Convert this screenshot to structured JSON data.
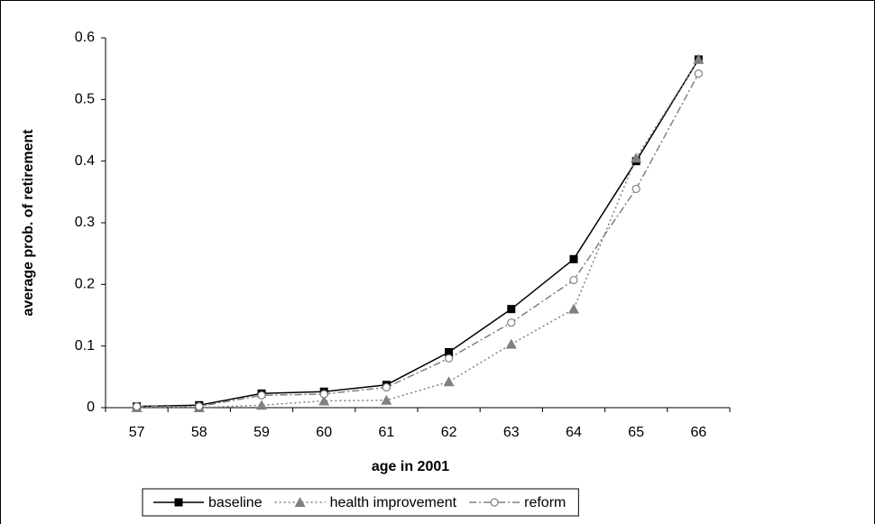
{
  "chart_data": {
    "type": "line",
    "xlabel": "age in 2001",
    "ylabel": "average prob. of retirement",
    "categories": [
      "57",
      "58",
      "59",
      "60",
      "61",
      "62",
      "63",
      "64",
      "65",
      "66"
    ],
    "series": [
      {
        "name": "baseline",
        "color": "#000000",
        "dash": "solid",
        "marker": "square",
        "values": [
          0.002,
          0.004,
          0.023,
          0.026,
          0.037,
          0.09,
          0.16,
          0.241,
          0.4,
          0.565
        ]
      },
      {
        "name": "health improvement",
        "color": "#808080",
        "dash": "dotted",
        "marker": "triangle",
        "values": [
          0,
          0,
          0.004,
          0.011,
          0.012,
          0.042,
          0.103,
          0.16,
          0.405,
          0.565
        ]
      },
      {
        "name": "reform",
        "color": "#808080",
        "dash": "dashdot",
        "marker": "circle",
        "values": [
          0.002,
          0.002,
          0.02,
          0.022,
          0.033,
          0.08,
          0.138,
          0.207,
          0.355,
          0.542
        ]
      }
    ],
    "ylim": [
      0,
      0.6
    ],
    "yticks": [
      0,
      0.1,
      0.2,
      0.3,
      0.4,
      0.5,
      0.6
    ],
    "grid": false,
    "legend": "bottom"
  }
}
